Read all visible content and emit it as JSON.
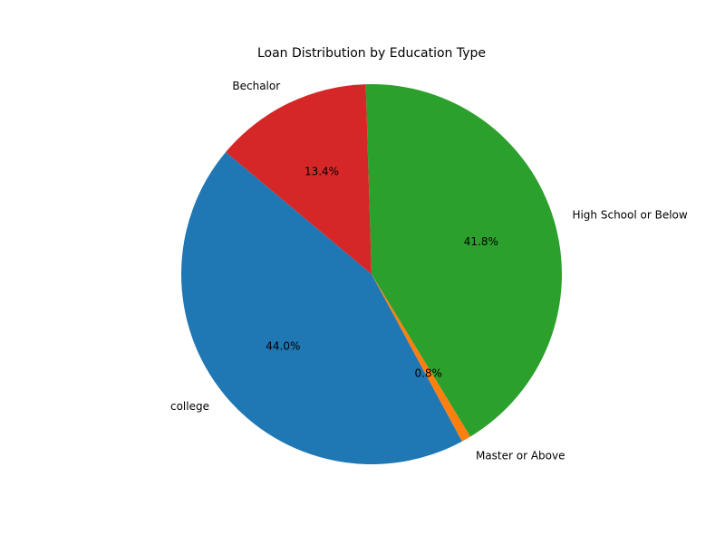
{
  "chart_data": {
    "type": "pie",
    "title": "Loan Distribution by Education Type",
    "slices": [
      {
        "label": "college",
        "percent": 44.0,
        "percent_label": "44.0%",
        "color": "#1f77b4"
      },
      {
        "label": "Master or Above",
        "percent": 0.8,
        "percent_label": "0.8%",
        "color": "#ff7f0e"
      },
      {
        "label": "High School or Below",
        "percent": 41.8,
        "percent_label": "41.8%",
        "color": "#2ca02c"
      },
      {
        "label": "Bechalor",
        "percent": 13.4,
        "percent_label": "13.4%",
        "color": "#d62728"
      }
    ],
    "start_angle_deg": 140,
    "direction": "counterclockwise"
  }
}
